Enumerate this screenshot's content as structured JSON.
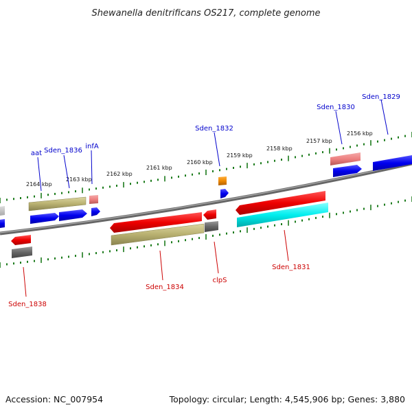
{
  "title": "Shewanella denitrificans OS217, complete genome",
  "footer": {
    "accession": "Accession: NC_007954",
    "summary": "Topology: circular; Length: 4,545,906 bp; Genes: 3,880"
  },
  "kbp_labels": [
    "2164 kbp",
    "2163 kbp",
    "2162 kbp",
    "2161 kbp",
    "2160 kbp",
    "2159 kbp",
    "2158 kbp",
    "2157 kbp",
    "2156 kbp"
  ],
  "gene_labels_top": [
    "aat",
    "Sden_1836",
    "infA",
    "Sden_1832",
    "Sden_1830",
    "Sden_1829"
  ],
  "gene_labels_bottom": [
    "Sden_1838",
    "Sden_1834",
    "clpS",
    "Sden_1831"
  ],
  "colors": {
    "backbone": "#777777",
    "plus_ticks": "#1a7a1a",
    "blue_gene": "#0000ee",
    "red_gene": "#ee0000",
    "olive_gene": "#b8b070",
    "cyan_gene": "#00eeee",
    "gray_gene": "#666666",
    "pink_gene": "#ee8080",
    "orange_gene": "#ee8800",
    "label_top": "#0000cc",
    "label_bottom": "#cc0000"
  }
}
